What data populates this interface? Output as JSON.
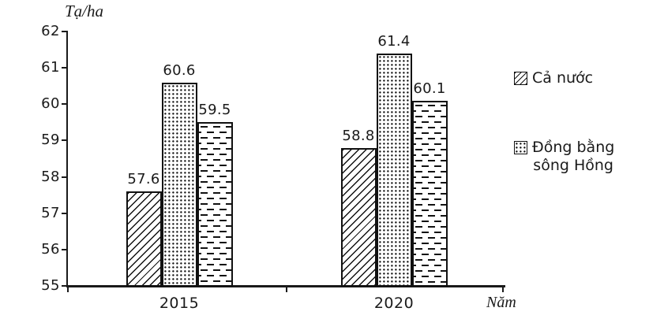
{
  "colors": {
    "background": "#ffffff",
    "ink": "#1a1a1a",
    "bar_fill": "#ffffff",
    "bar_border": "#111111"
  },
  "chart_data": {
    "type": "bar",
    "title": "",
    "y_axis_label": "Tạ/ha",
    "x_axis_label": "Năm",
    "categories": [
      "2015",
      "2020"
    ],
    "series": [
      {
        "name": "Cả nước",
        "pattern": "diagonal-hatch",
        "values": [
          57.6,
          58.8
        ]
      },
      {
        "name": "Đồng bằng sông Hồng",
        "pattern": "dots",
        "values": [
          60.6,
          61.4
        ]
      },
      {
        "name": "",
        "pattern": "horizontal-dashes",
        "values": [
          59.5,
          60.1
        ]
      }
    ],
    "data_labels": [
      [
        "57.6",
        "58.8"
      ],
      [
        "60.6",
        "61.4"
      ],
      [
        "59.5",
        "60.1"
      ]
    ],
    "ylim": [
      55,
      62
    ],
    "y_ticks": [
      "55",
      "56",
      "57",
      "58",
      "59",
      "60",
      "61",
      "62"
    ],
    "grid": false,
    "legend_position": "right",
    "legend": [
      {
        "lines": [
          "Cả nước"
        ],
        "pattern": "diagonal-hatch"
      },
      {
        "lines": [
          "Đồng bằng",
          "sông Hồng"
        ],
        "pattern": "dots"
      }
    ]
  }
}
